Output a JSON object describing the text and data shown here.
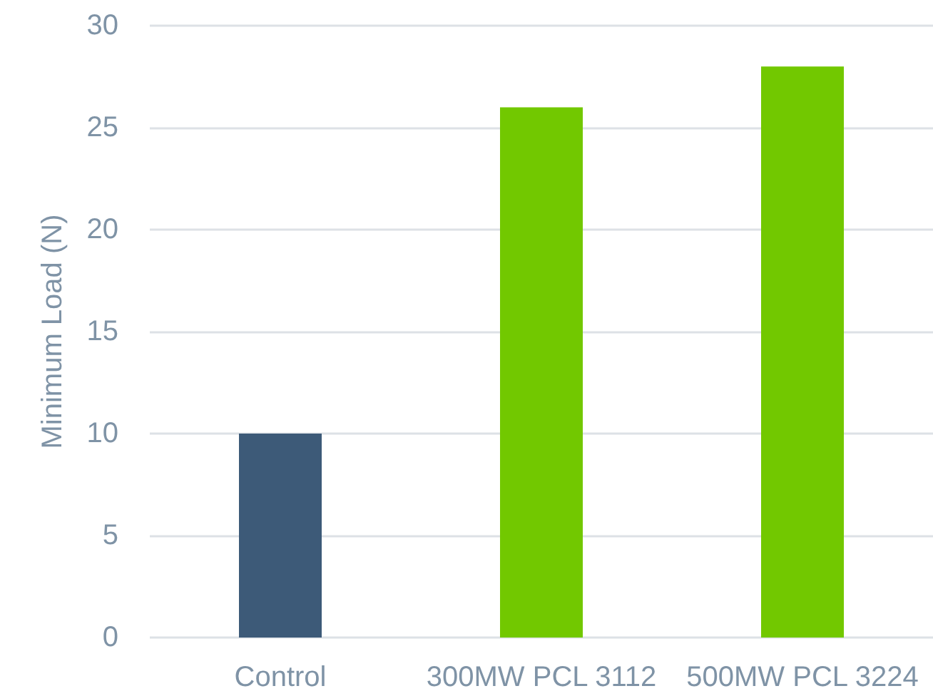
{
  "chart_data": {
    "type": "bar",
    "ylabel": "Minimum Load (N)",
    "categories": [
      "Control",
      "300MW PCL 3112",
      "500MW PCL 3224"
    ],
    "values": [
      10,
      26,
      28
    ],
    "colors": [
      "#3d5a78",
      "#72c800",
      "#72c800"
    ],
    "ylim": [
      0,
      30
    ],
    "yticks": [
      0,
      5,
      10,
      15,
      20,
      25,
      30
    ],
    "grid": "y"
  }
}
